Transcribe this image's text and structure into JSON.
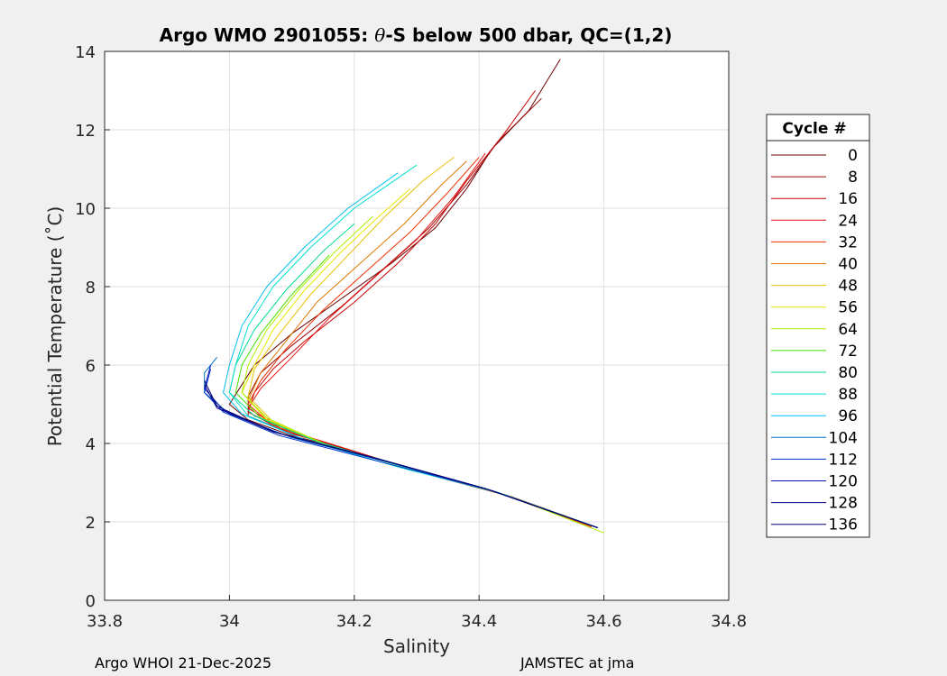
{
  "chart_data": {
    "type": "line",
    "title_prefix": "Argo WMO 2901055: ",
    "title_theta": "θ",
    "title_suffix": "-S below 500 dbar,  QC=(1,2)",
    "xlabel": "Salinity",
    "ylabel": "Potential Temperature (˚C)",
    "xlim": [
      33.8,
      34.8
    ],
    "ylim": [
      0,
      14
    ],
    "xticks": [
      "33.8",
      "34",
      "34.2",
      "34.4",
      "34.6",
      "34.8"
    ],
    "yticks": [
      "0",
      "2",
      "4",
      "6",
      "8",
      "10",
      "12",
      "14"
    ],
    "grid": true,
    "legend": {
      "title": "Cycle #",
      "placement": "outside-right",
      "entries": [
        {
          "label": "0",
          "color": "#6b0000"
        },
        {
          "label": "8",
          "color": "#9a0000"
        },
        {
          "label": "16",
          "color": "#c80000"
        },
        {
          "label": "24",
          "color": "#e61010"
        },
        {
          "label": "32",
          "color": "#f03000"
        },
        {
          "label": "40",
          "color": "#e07800"
        },
        {
          "label": "48",
          "color": "#e6c000"
        },
        {
          "label": "56",
          "color": "#e8e800"
        },
        {
          "label": "64",
          "color": "#b0ee00"
        },
        {
          "label": "72",
          "color": "#40e000"
        },
        {
          "label": "80",
          "color": "#00d890"
        },
        {
          "label": "88",
          "color": "#00e0d0"
        },
        {
          "label": "96",
          "color": "#00c0f0"
        },
        {
          "label": "104",
          "color": "#0070c0"
        },
        {
          "label": "112",
          "color": "#0030d0"
        },
        {
          "label": "120",
          "color": "#0010b0"
        },
        {
          "label": "128",
          "color": "#00008c"
        },
        {
          "label": "136",
          "color": "#000070"
        }
      ]
    },
    "series": [
      {
        "name": "0",
        "color": "#6b0000",
        "points": [
          [
            34.59,
            1.85
          ],
          [
            34.45,
            2.65
          ],
          [
            34.32,
            3.2
          ],
          [
            34.2,
            3.8
          ],
          [
            34.1,
            4.2
          ],
          [
            34.03,
            4.6
          ],
          [
            34.0,
            5.0
          ],
          [
            34.02,
            5.5
          ],
          [
            34.04,
            6.0
          ],
          [
            34.1,
            6.8
          ],
          [
            34.18,
            7.7
          ],
          [
            34.26,
            8.6
          ],
          [
            34.33,
            9.5
          ],
          [
            34.38,
            10.5
          ],
          [
            34.42,
            11.5
          ],
          [
            34.48,
            12.5
          ],
          [
            34.53,
            13.8
          ]
        ]
      },
      {
        "name": "8",
        "color": "#9a0000",
        "points": [
          [
            34.59,
            1.85
          ],
          [
            34.45,
            2.65
          ],
          [
            34.31,
            3.25
          ],
          [
            34.19,
            3.85
          ],
          [
            34.1,
            4.25
          ],
          [
            34.03,
            4.7
          ],
          [
            34.03,
            5.2
          ],
          [
            34.05,
            5.8
          ],
          [
            34.1,
            6.5
          ],
          [
            34.18,
            7.5
          ],
          [
            34.25,
            8.5
          ],
          [
            34.32,
            9.5
          ],
          [
            34.38,
            10.6
          ],
          [
            34.43,
            11.7
          ],
          [
            34.5,
            12.8
          ]
        ]
      },
      {
        "name": "16",
        "color": "#c80000",
        "points": [
          [
            34.59,
            1.85
          ],
          [
            34.44,
            2.7
          ],
          [
            34.3,
            3.3
          ],
          [
            34.18,
            3.9
          ],
          [
            34.09,
            4.3
          ],
          [
            34.03,
            4.8
          ],
          [
            34.04,
            5.3
          ],
          [
            34.07,
            5.9
          ],
          [
            34.12,
            6.6
          ],
          [
            34.2,
            7.6
          ],
          [
            34.27,
            8.6
          ],
          [
            34.33,
            9.6
          ],
          [
            34.38,
            10.7
          ],
          [
            34.44,
            11.9
          ],
          [
            34.49,
            13.0
          ]
        ]
      },
      {
        "name": "24",
        "color": "#e61010",
        "points": [
          [
            34.58,
            1.87
          ],
          [
            34.44,
            2.7
          ],
          [
            34.3,
            3.3
          ],
          [
            34.18,
            3.9
          ],
          [
            34.08,
            4.4
          ],
          [
            34.03,
            4.9
          ],
          [
            34.05,
            5.4
          ],
          [
            34.1,
            6.2
          ],
          [
            34.16,
            7.2
          ],
          [
            34.23,
            8.2
          ],
          [
            34.3,
            9.2
          ],
          [
            34.36,
            10.3
          ],
          [
            34.41,
            11.4
          ]
        ]
      },
      {
        "name": "32",
        "color": "#f03000",
        "points": [
          [
            34.58,
            1.87
          ],
          [
            34.43,
            2.75
          ],
          [
            34.29,
            3.35
          ],
          [
            34.16,
            3.95
          ],
          [
            34.07,
            4.45
          ],
          [
            34.03,
            5.0
          ],
          [
            34.05,
            5.6
          ],
          [
            34.09,
            6.4
          ],
          [
            34.15,
            7.4
          ],
          [
            34.22,
            8.4
          ],
          [
            34.29,
            9.4
          ],
          [
            34.35,
            10.4
          ],
          [
            34.4,
            11.3
          ]
        ]
      },
      {
        "name": "40",
        "color": "#e07800",
        "points": [
          [
            34.58,
            1.88
          ],
          [
            34.43,
            2.75
          ],
          [
            34.29,
            3.35
          ],
          [
            34.16,
            3.95
          ],
          [
            34.07,
            4.5
          ],
          [
            34.03,
            5.1
          ],
          [
            34.05,
            5.8
          ],
          [
            34.09,
            6.6
          ],
          [
            34.14,
            7.6
          ],
          [
            34.21,
            8.6
          ],
          [
            34.28,
            9.6
          ],
          [
            34.34,
            10.6
          ],
          [
            34.38,
            11.2
          ]
        ]
      },
      {
        "name": "48",
        "color": "#e6c000",
        "points": [
          [
            34.59,
            1.85
          ],
          [
            34.43,
            2.75
          ],
          [
            34.29,
            3.35
          ],
          [
            34.16,
            3.95
          ],
          [
            34.07,
            4.55
          ],
          [
            34.03,
            5.2
          ],
          [
            34.04,
            5.9
          ],
          [
            34.08,
            6.8
          ],
          [
            34.13,
            7.8
          ],
          [
            34.19,
            8.8
          ],
          [
            34.25,
            9.8
          ],
          [
            34.31,
            10.7
          ],
          [
            34.36,
            11.3
          ]
        ]
      },
      {
        "name": "56",
        "color": "#e8e800",
        "points": [
          [
            34.59,
            1.85
          ],
          [
            34.43,
            2.75
          ],
          [
            34.29,
            3.35
          ],
          [
            34.15,
            4.0
          ],
          [
            34.06,
            4.6
          ],
          [
            34.02,
            5.3
          ],
          [
            34.04,
            6.0
          ],
          [
            34.07,
            6.9
          ],
          [
            34.12,
            7.9
          ],
          [
            34.18,
            8.9
          ],
          [
            34.24,
            9.8
          ],
          [
            34.29,
            10.5
          ]
        ]
      },
      {
        "name": "64",
        "color": "#b0ee00",
        "points": [
          [
            34.6,
            1.72
          ],
          [
            34.44,
            2.7
          ],
          [
            34.3,
            3.3
          ],
          [
            34.15,
            4.0
          ],
          [
            34.06,
            4.65
          ],
          [
            34.02,
            5.3
          ],
          [
            34.03,
            6.0
          ],
          [
            34.06,
            6.9
          ],
          [
            34.11,
            7.9
          ],
          [
            34.17,
            8.9
          ],
          [
            34.23,
            9.8
          ]
        ]
      },
      {
        "name": "72",
        "color": "#40e000",
        "points": [
          [
            34.59,
            1.85
          ],
          [
            34.43,
            2.75
          ],
          [
            34.28,
            3.4
          ],
          [
            34.14,
            4.05
          ],
          [
            34.05,
            4.65
          ],
          [
            34.01,
            5.3
          ],
          [
            34.02,
            6.0
          ],
          [
            34.05,
            6.8
          ],
          [
            34.1,
            7.8
          ],
          [
            34.16,
            8.8
          ]
        ]
      },
      {
        "name": "80",
        "color": "#00d890",
        "points": [
          [
            34.59,
            1.85
          ],
          [
            34.43,
            2.75
          ],
          [
            34.28,
            3.4
          ],
          [
            34.14,
            4.05
          ],
          [
            34.04,
            4.7
          ],
          [
            34.0,
            5.3
          ],
          [
            34.01,
            6.0
          ],
          [
            34.04,
            6.9
          ],
          [
            34.09,
            7.9
          ],
          [
            34.15,
            8.9
          ],
          [
            34.2,
            9.6
          ]
        ]
      },
      {
        "name": "88",
        "color": "#00e0d0",
        "points": [
          [
            34.59,
            1.85
          ],
          [
            34.43,
            2.75
          ],
          [
            34.27,
            3.4
          ],
          [
            34.12,
            4.1
          ],
          [
            34.03,
            4.7
          ],
          [
            34.0,
            5.3
          ],
          [
            34.01,
            6.0
          ],
          [
            34.03,
            7.0
          ],
          [
            34.07,
            8.0
          ],
          [
            34.13,
            9.0
          ],
          [
            34.2,
            10.0
          ],
          [
            34.3,
            11.1
          ]
        ]
      },
      {
        "name": "96",
        "color": "#00c0f0",
        "points": [
          [
            34.59,
            1.85
          ],
          [
            34.42,
            2.8
          ],
          [
            34.27,
            3.45
          ],
          [
            34.12,
            4.1
          ],
          [
            34.02,
            4.75
          ],
          [
            33.99,
            5.3
          ],
          [
            34.0,
            6.0
          ],
          [
            34.02,
            7.0
          ],
          [
            34.06,
            8.0
          ],
          [
            34.12,
            9.0
          ],
          [
            34.19,
            10.0
          ],
          [
            34.27,
            10.9
          ]
        ]
      },
      {
        "name": "104",
        "color": "#0070c0",
        "points": [
          [
            34.59,
            1.85
          ],
          [
            34.42,
            2.8
          ],
          [
            34.26,
            3.5
          ],
          [
            34.1,
            4.15
          ],
          [
            34.0,
            4.75
          ],
          [
            33.96,
            5.3
          ],
          [
            33.96,
            5.8
          ],
          [
            33.98,
            6.2
          ]
        ]
      },
      {
        "name": "112",
        "color": "#0030d0",
        "points": [
          [
            34.59,
            1.85
          ],
          [
            34.42,
            2.8
          ],
          [
            34.25,
            3.5
          ],
          [
            34.08,
            4.2
          ],
          [
            33.99,
            4.8
          ],
          [
            33.96,
            5.3
          ],
          [
            33.97,
            5.9
          ]
        ]
      },
      {
        "name": "120",
        "color": "#0010b0",
        "points": [
          [
            34.59,
            1.85
          ],
          [
            34.42,
            2.8
          ],
          [
            34.25,
            3.55
          ],
          [
            34.08,
            4.25
          ],
          [
            33.99,
            4.85
          ],
          [
            33.96,
            5.4
          ],
          [
            33.97,
            6.0
          ]
        ]
      },
      {
        "name": "128",
        "color": "#00008c",
        "points": [
          [
            34.59,
            1.85
          ],
          [
            34.41,
            2.85
          ],
          [
            34.24,
            3.6
          ],
          [
            34.07,
            4.3
          ],
          [
            33.98,
            4.9
          ],
          [
            33.96,
            5.5
          ]
        ]
      },
      {
        "name": "136",
        "color": "#000070",
        "points": [
          [
            34.59,
            1.85
          ],
          [
            34.41,
            2.85
          ],
          [
            34.24,
            3.6
          ],
          [
            34.07,
            4.3
          ],
          [
            33.98,
            4.95
          ],
          [
            33.96,
            5.6
          ]
        ]
      }
    ]
  },
  "footer": {
    "left": "Argo WHOI 21-Dec-2025",
    "right": "JAMSTEC at jma"
  }
}
